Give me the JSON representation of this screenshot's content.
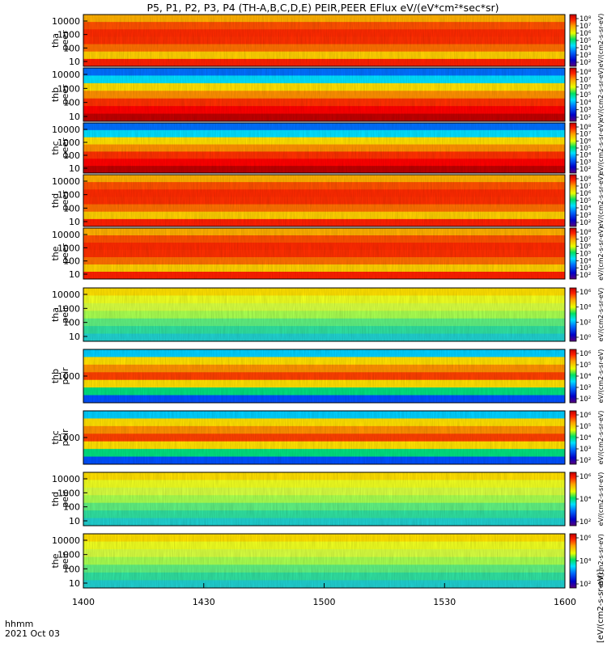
{
  "chart_data": {
    "type": "heatmap",
    "title": "P5, P1, P2, P3, P4 (TH-A,B,C,D,E) PEIR,PEER EFlux eV/(eV*cm²*sec*sr)",
    "x_axis": {
      "label_line1": "hhmm",
      "label_line2": "2021 Oct 03",
      "range": [
        1400,
        1600
      ],
      "ticks": [
        "1400",
        "1430",
        "1500",
        "1530",
        "1600"
      ]
    },
    "colorbar_label": "eV/(cm2-s-sr-eV)",
    "colorbar_label_bottom": "[eV/(cm2-s-sr-eV)]",
    "panels": [
      {
        "probe": "tha",
        "species": "peer",
        "label_line1": "tha",
        "label_line2": "peer",
        "y_ticks": [
          "10000",
          "1000",
          "100",
          "10"
        ],
        "colorbar_ticks": [
          "10⁸",
          "10⁷",
          "10⁶",
          "10⁵",
          "10⁴",
          "10³",
          "10²"
        ]
      },
      {
        "probe": "thb",
        "species": "peer",
        "label_line1": "thb",
        "label_line2": "peer",
        "y_ticks": [
          "10000",
          "1000",
          "100",
          "10"
        ],
        "colorbar_ticks": [
          "10⁸",
          "10⁷",
          "10⁶",
          "10⁵",
          "10⁴",
          "10³",
          "10²"
        ]
      },
      {
        "probe": "thc",
        "species": "peer",
        "label_line1": "thc",
        "label_line2": "peer",
        "y_ticks": [
          "10000",
          "1000",
          "100",
          "10"
        ],
        "colorbar_ticks": [
          "10⁸",
          "10⁷",
          "10⁶",
          "10⁵",
          "10⁴",
          "10³",
          "10²"
        ]
      },
      {
        "probe": "thd",
        "species": "peer",
        "label_line1": "thd",
        "label_line2": "peer",
        "y_ticks": [
          "10000",
          "1000",
          "100",
          "10"
        ],
        "colorbar_ticks": [
          "10⁸",
          "10⁷",
          "10⁶",
          "10⁵",
          "10⁴",
          "10³",
          "10²"
        ]
      },
      {
        "probe": "the",
        "species": "peer",
        "label_line1": "the",
        "label_line2": "peer",
        "y_ticks": [
          "10000",
          "1000",
          "100",
          "10"
        ],
        "colorbar_ticks": [
          "10⁸",
          "10⁷",
          "10⁶",
          "10⁵",
          "10⁴",
          "10³",
          "10²"
        ]
      },
      {
        "probe": "tha",
        "species": "peir",
        "label_line1": "tha",
        "label_line2": "peir",
        "y_ticks": [
          "10000",
          "1000",
          "100",
          "10"
        ],
        "colorbar_ticks": [
          "10⁶",
          "10⁴",
          "10²",
          "10⁰"
        ]
      },
      {
        "probe": "thb",
        "species": "peir",
        "label_line1": "thb",
        "label_line2": "peir",
        "y_ticks": [
          "1000"
        ],
        "colorbar_ticks": [
          "10⁶",
          "10⁵",
          "10⁴",
          "10³",
          "10²"
        ]
      },
      {
        "probe": "thc",
        "species": "peir",
        "label_line1": "thc",
        "label_line2": "peir",
        "y_ticks": [
          "1000"
        ],
        "colorbar_ticks": [
          "10⁶",
          "10⁵",
          "10⁴",
          "10³",
          "10²"
        ]
      },
      {
        "probe": "thd",
        "species": "peir",
        "label_line1": "thd",
        "label_line2": "peir",
        "y_ticks": [
          "10000",
          "1000",
          "100",
          "10"
        ],
        "colorbar_ticks": [
          "10⁶",
          "10⁴",
          "10²"
        ]
      },
      {
        "probe": "the",
        "species": "peir",
        "label_line1": "the",
        "label_line2": "peir",
        "y_ticks": [
          "10000",
          "1000",
          "100",
          "10"
        ],
        "colorbar_ticks": [
          "10⁶",
          "10⁴",
          "10²"
        ]
      }
    ]
  }
}
